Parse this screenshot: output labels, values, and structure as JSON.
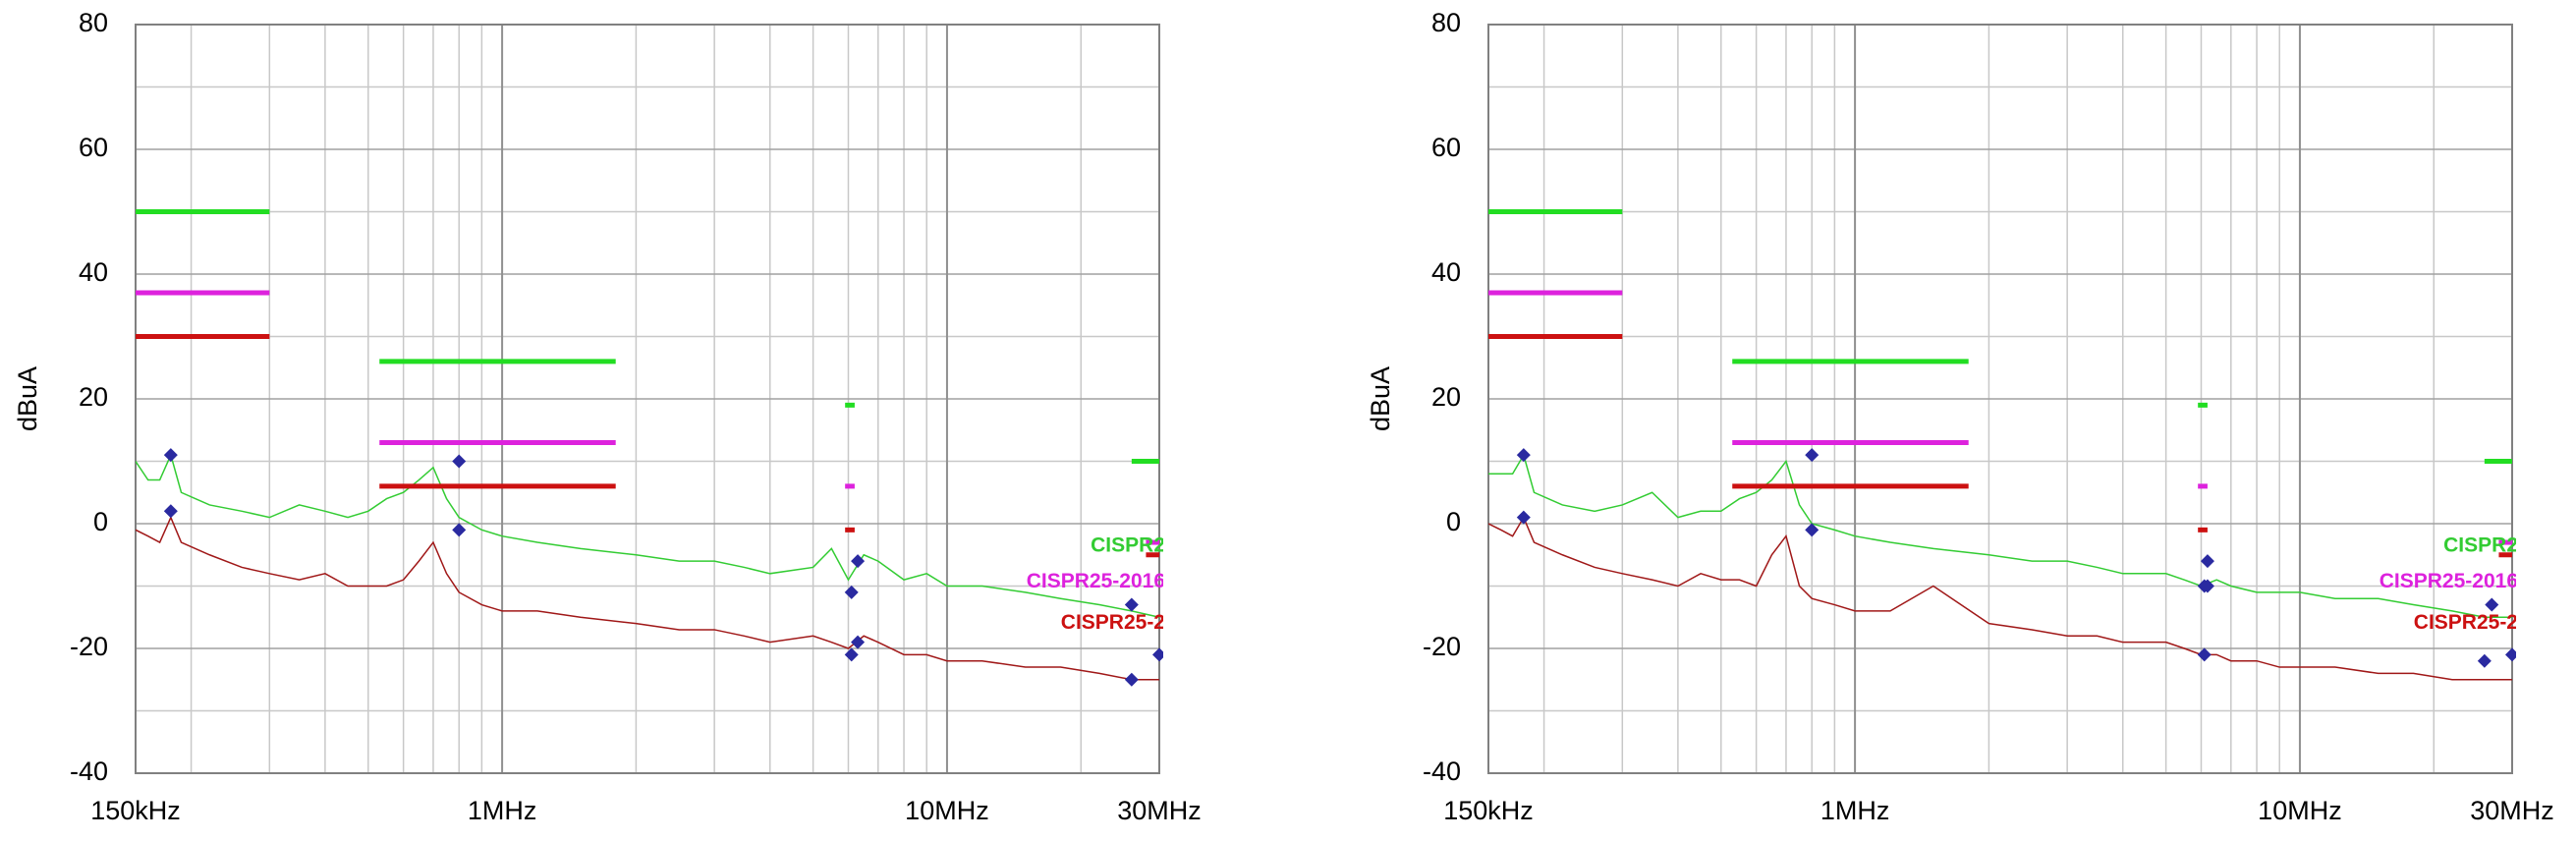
{
  "chart_data": [
    {
      "type": "line",
      "xlog": true,
      "y_label": "dBuA",
      "xlim": [
        0.15,
        30
      ],
      "ylim": [
        -40,
        80
      ],
      "xticks": [
        {
          "value": 0.15,
          "label": "150kHz"
        },
        {
          "value": 1,
          "label": "1MHz"
        },
        {
          "value": 10,
          "label": "10MHz"
        },
        {
          "value": 30,
          "label": "30MHz"
        }
      ],
      "yticks": [
        -40,
        -20,
        0,
        20,
        40,
        60,
        80
      ],
      "xgrid": [
        0.2,
        0.3,
        0.4,
        0.5,
        0.6,
        0.7,
        0.8,
        0.9,
        2,
        3,
        4,
        5,
        6,
        7,
        8,
        9,
        20
      ],
      "ygrid": [
        -30,
        -10,
        10,
        30,
        50,
        70
      ],
      "series": [
        {
          "color": "#33cc33",
          "width": 1.5,
          "x": [
            0.15,
            0.16,
            0.17,
            0.18,
            0.19,
            0.22,
            0.26,
            0.3,
            0.35,
            0.4,
            0.45,
            0.5,
            0.55,
            0.6,
            0.65,
            0.7,
            0.75,
            0.8,
            0.9,
            1,
            1.2,
            1.5,
            2,
            2.5,
            3,
            3.5,
            4,
            5,
            5.5,
            6,
            6.5,
            7,
            8,
            9,
            10,
            12,
            15,
            18,
            22,
            26,
            30
          ],
          "values": [
            10,
            7,
            7,
            11,
            5,
            3,
            2,
            1,
            3,
            2,
            1,
            2,
            4,
            5,
            7,
            9,
            4,
            1,
            -1,
            -2,
            -3,
            -4,
            -5,
            -6,
            -6,
            -7,
            -8,
            -7,
            -4,
            -9,
            -5,
            -6,
            -9,
            -8,
            -10,
            -10,
            -11,
            -12,
            -13,
            -14,
            -15
          ]
        },
        {
          "color": "#a01818",
          "width": 1.5,
          "x": [
            0.15,
            0.16,
            0.17,
            0.18,
            0.19,
            0.22,
            0.26,
            0.3,
            0.35,
            0.4,
            0.45,
            0.5,
            0.55,
            0.6,
            0.65,
            0.7,
            0.75,
            0.8,
            0.9,
            1,
            1.2,
            1.5,
            2,
            2.5,
            3,
            3.5,
            4,
            5,
            5.5,
            6,
            6.5,
            7,
            8,
            9,
            10,
            12,
            15,
            18,
            22,
            26,
            30
          ],
          "values": [
            -1,
            -2,
            -3,
            1,
            -3,
            -5,
            -7,
            -8,
            -9,
            -8,
            -10,
            -10,
            -10,
            -9,
            -6,
            -3,
            -8,
            -11,
            -13,
            -14,
            -14,
            -15,
            -16,
            -17,
            -17,
            -18,
            -19,
            -18,
            -19,
            -20,
            -18,
            -19,
            -21,
            -21,
            -22,
            -22,
            -23,
            -23,
            -24,
            -25,
            -25
          ]
        },
        {
          "color": "#22dd22",
          "width": 5,
          "x": [
            0.15,
            0.3,
            0.3,
            0.53,
            1.8,
            1.8,
            5.9,
            6.2,
            6.2,
            26,
            30
          ],
          "values": [
            50,
            50,
            null,
            26,
            26,
            null,
            19,
            19,
            null,
            10,
            10
          ]
        },
        {
          "color": "#dd22dd",
          "width": 5,
          "x": [
            0.15,
            0.3,
            0.3,
            0.53,
            1.8,
            1.8,
            5.9,
            6.2,
            6.2,
            28,
            30
          ],
          "values": [
            37,
            37,
            null,
            13,
            13,
            null,
            6,
            6,
            null,
            -3,
            -3
          ]
        },
        {
          "color": "#cc1111",
          "width": 5,
          "x": [
            0.15,
            0.3,
            0.3,
            0.53,
            1.8,
            1.8,
            5.9,
            6.2,
            6.2,
            28,
            30
          ],
          "values": [
            30,
            30,
            null,
            6,
            6,
            null,
            -1,
            -1,
            null,
            -5,
            -5
          ]
        }
      ],
      "markers": {
        "color": "#2a2aa0",
        "x": [
          0.18,
          0.18,
          0.8,
          0.8,
          6.1,
          6.3,
          6.3,
          6.1,
          26,
          26,
          30
        ],
        "values": [
          11,
          2,
          10,
          -1,
          -11,
          -6,
          -19,
          -21,
          -13,
          -25,
          -21
        ]
      },
      "annotations": [
        {
          "text": "CISPR2",
          "color": "#33cc33"
        },
        {
          "text": "CISPR25-2016",
          "color": "#dd22dd"
        },
        {
          "text": "CISPR25-2",
          "color": "#cc1111"
        }
      ]
    },
    {
      "type": "line",
      "xlog": true,
      "y_label": "dBuA",
      "xlim": [
        0.15,
        30
      ],
      "ylim": [
        -40,
        80
      ],
      "xticks": [
        {
          "value": 0.15,
          "label": "150kHz"
        },
        {
          "value": 1,
          "label": "1MHz"
        },
        {
          "value": 10,
          "label": "10MHz"
        },
        {
          "value": 30,
          "label": "30MHz"
        }
      ],
      "yticks": [
        -40,
        -20,
        0,
        20,
        40,
        60,
        80
      ],
      "xgrid": [
        0.2,
        0.3,
        0.4,
        0.5,
        0.6,
        0.7,
        0.8,
        0.9,
        2,
        3,
        4,
        5,
        6,
        7,
        8,
        9,
        20
      ],
      "ygrid": [
        -30,
        -10,
        10,
        30,
        50,
        70
      ],
      "series": [
        {
          "color": "#33cc33",
          "width": 1.5,
          "x": [
            0.15,
            0.16,
            0.17,
            0.18,
            0.19,
            0.22,
            0.26,
            0.3,
            0.35,
            0.4,
            0.45,
            0.5,
            0.55,
            0.6,
            0.65,
            0.7,
            0.75,
            0.8,
            0.9,
            1,
            1.2,
            1.5,
            2,
            2.5,
            3,
            3.5,
            4,
            5,
            5.5,
            6,
            6.5,
            7,
            8,
            9,
            10,
            12,
            15,
            18,
            22,
            26,
            30
          ],
          "values": [
            8,
            8,
            8,
            11,
            5,
            3,
            2,
            3,
            5,
            1,
            2,
            2,
            4,
            5,
            7,
            10,
            3,
            0,
            -1,
            -2,
            -3,
            -4,
            -5,
            -6,
            -6,
            -7,
            -8,
            -8,
            -9,
            -10,
            -9,
            -10,
            -11,
            -11,
            -11,
            -12,
            -12,
            -13,
            -14,
            -15,
            -15
          ]
        },
        {
          "color": "#a01818",
          "width": 1.5,
          "x": [
            0.15,
            0.16,
            0.17,
            0.18,
            0.19,
            0.22,
            0.26,
            0.3,
            0.35,
            0.4,
            0.45,
            0.5,
            0.55,
            0.6,
            0.65,
            0.7,
            0.75,
            0.8,
            0.9,
            1,
            1.2,
            1.5,
            2,
            2.5,
            3,
            3.5,
            4,
            5,
            5.5,
            6,
            6.5,
            7,
            8,
            9,
            10,
            12,
            15,
            18,
            22,
            26,
            30
          ],
          "values": [
            0,
            -1,
            -2,
            1,
            -3,
            -5,
            -7,
            -8,
            -9,
            -10,
            -8,
            -9,
            -9,
            -10,
            -5,
            -2,
            -10,
            -12,
            -13,
            -14,
            -14,
            -10,
            -16,
            -17,
            -18,
            -18,
            -19,
            -19,
            -20,
            -21,
            -21,
            -22,
            -22,
            -23,
            -23,
            -23,
            -24,
            -24,
            -25,
            -25,
            -25
          ]
        },
        {
          "color": "#22dd22",
          "width": 5,
          "x": [
            0.15,
            0.3,
            0.3,
            0.53,
            1.8,
            1.8,
            5.9,
            6.2,
            6.2,
            26,
            30
          ],
          "values": [
            50,
            50,
            null,
            26,
            26,
            null,
            19,
            19,
            null,
            10,
            10
          ]
        },
        {
          "color": "#dd22dd",
          "width": 5,
          "x": [
            0.15,
            0.3,
            0.3,
            0.53,
            1.8,
            1.8,
            5.9,
            6.2,
            6.2,
            28,
            30
          ],
          "values": [
            37,
            37,
            null,
            13,
            13,
            null,
            6,
            6,
            null,
            -3,
            -3
          ]
        },
        {
          "color": "#cc1111",
          "width": 5,
          "x": [
            0.15,
            0.3,
            0.3,
            0.53,
            1.8,
            1.8,
            5.9,
            6.2,
            6.2,
            28,
            30
          ],
          "values": [
            30,
            30,
            null,
            6,
            6,
            null,
            -1,
            -1,
            null,
            -5,
            -5
          ]
        }
      ],
      "markers": {
        "color": "#2a2aa0",
        "x": [
          0.18,
          0.18,
          0.8,
          0.8,
          6.1,
          6.2,
          6.2,
          6.1,
          27,
          26,
          30
        ],
        "values": [
          11,
          1,
          11,
          -1,
          -10,
          -6,
          -10,
          -21,
          -13,
          -22,
          -21
        ]
      },
      "annotations": [
        {
          "text": "CISPR2",
          "color": "#33cc33"
        },
        {
          "text": "CISPR25-2016",
          "color": "#dd22dd"
        },
        {
          "text": "CISPR25-2",
          "color": "#cc1111"
        }
      ]
    }
  ]
}
